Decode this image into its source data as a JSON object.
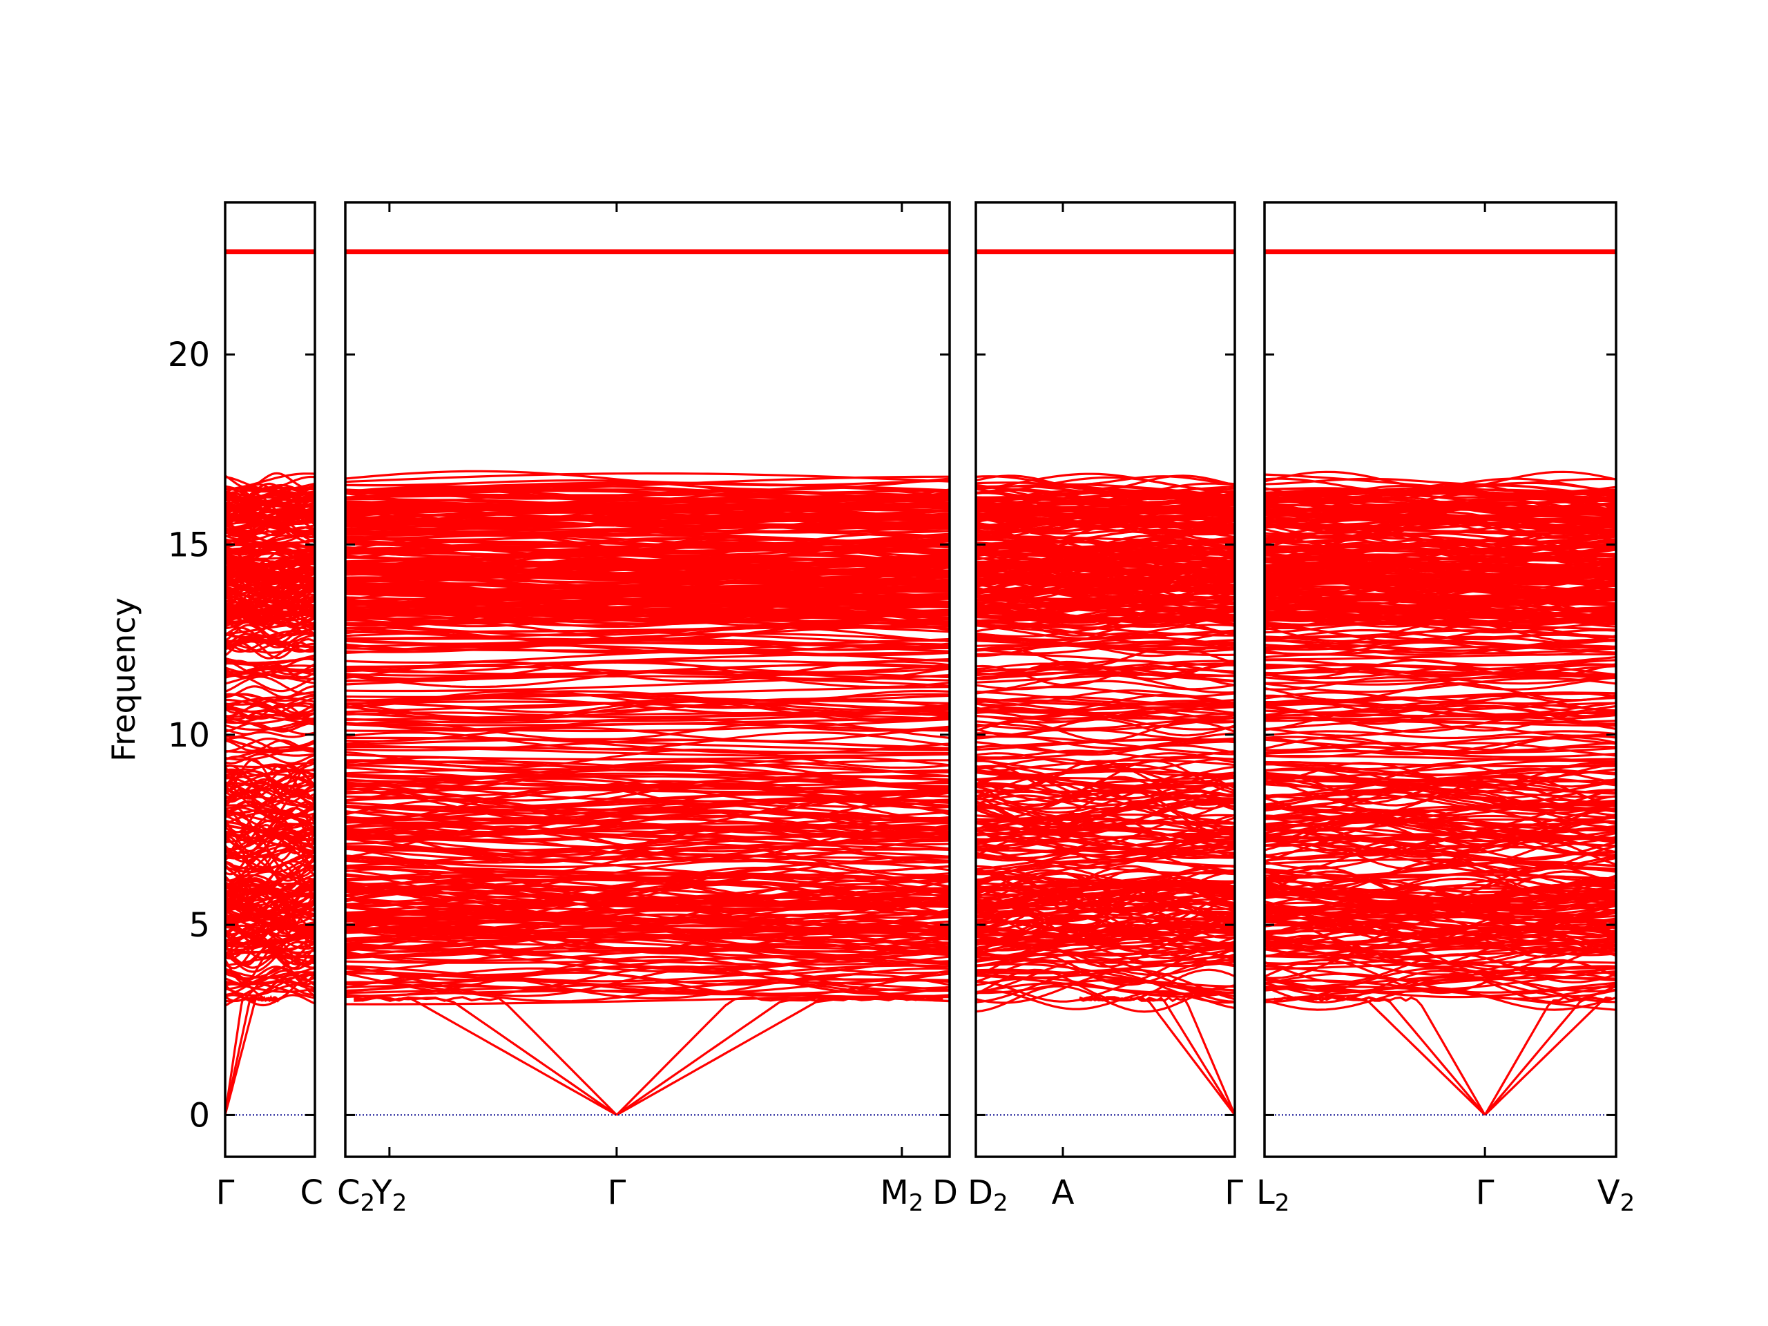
{
  "chart_data": {
    "type": "line",
    "title": "",
    "ylabel": "Frequency",
    "xlabel": "",
    "ylim": [
      -1.1,
      24
    ],
    "yticks": [
      0,
      5,
      10,
      15,
      20
    ],
    "grid": false,
    "line_color": "#ff0000",
    "zero_line_color": "#00008b",
    "panels": [
      {
        "path": [
          "Γ",
          "C"
        ],
        "labels": [
          {
            "base": "Γ",
            "sub": "",
            "pos": 0
          },
          {
            "base": "C",
            "sub": "",
            "pos": 1
          }
        ],
        "inner_ticks": []
      },
      {
        "path": [
          "C2",
          "Y2",
          "Γ",
          "M2",
          "D"
        ],
        "labels": [
          {
            "base": "C",
            "sub": "2",
            "pos": 0
          },
          {
            "base": "Y",
            "sub": "2",
            "pos": 0.073
          },
          {
            "base": "Γ",
            "sub": "",
            "pos": 0.449
          },
          {
            "base": "M",
            "sub": "2",
            "pos": 0.921
          },
          {
            "base": "D",
            "sub": "",
            "pos": 1
          }
        ],
        "inner_ticks": [
          0.073,
          0.449,
          0.921
        ]
      },
      {
        "path": [
          "D2",
          "A",
          "Γ"
        ],
        "labels": [
          {
            "base": "D",
            "sub": "2",
            "pos": 0
          },
          {
            "base": "A",
            "sub": "",
            "pos": 0.336
          },
          {
            "base": "Γ",
            "sub": "",
            "pos": 1
          }
        ],
        "inner_ticks": [
          0.336
        ]
      },
      {
        "path": [
          "L2",
          "Γ",
          "V2"
        ],
        "labels": [
          {
            "base": "L",
            "sub": "2",
            "pos": 0
          },
          {
            "base": "Γ",
            "sub": "",
            "pos": 0.627
          },
          {
            "base": "V",
            "sub": "2",
            "pos": 1
          }
        ],
        "inner_ticks": [
          0.627
        ]
      }
    ],
    "bands": {
      "top_flat_band": 22.7,
      "optical_band_range": [
        2.2,
        16.7
      ],
      "dense_region": [
        13.0,
        16.4
      ],
      "acoustic_modes_at_gamma": 0
    }
  }
}
